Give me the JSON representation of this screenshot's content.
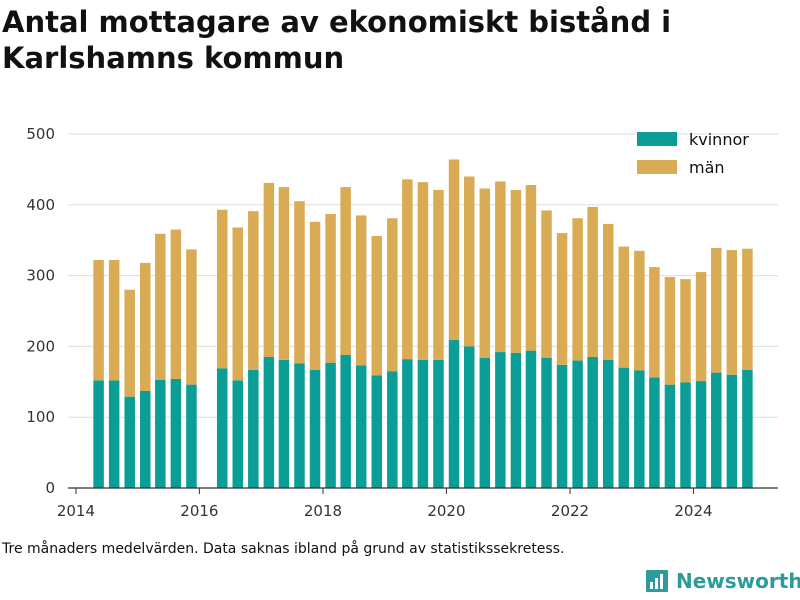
{
  "title": "Antal mottagare av ekonomiskt bistånd i Karlshamns kommun",
  "caption": "Tre månaders medelvärden. Data saknas ibland på grund av statistikssekretess.",
  "brand": {
    "name": "Newsworthy",
    "logo_icon": "bar-chart-logo-icon"
  },
  "colors": {
    "kvinnor": "#0a9e96",
    "man": "#d9ab55",
    "grid": "#dddddd",
    "axis": "#333333"
  },
  "legend": {
    "position": "top-right",
    "items": [
      {
        "label": "kvinnor",
        "color": "#0a9e96"
      },
      {
        "label": "män",
        "color": "#d9ab55"
      }
    ]
  },
  "chart_data": {
    "type": "bar",
    "stacked": true,
    "x_ticks": [
      "2014",
      "2016",
      "2018",
      "2020",
      "2022",
      "2024"
    ],
    "y_ticks": [
      0,
      100,
      200,
      300,
      400,
      500
    ],
    "ylim": [
      0,
      500
    ],
    "xlim": [
      "2013-11-15",
      "2025-05-15"
    ],
    "grid": true,
    "categories": [
      "2014-05",
      "2014-08",
      "2014-11",
      "2015-02",
      "2015-05",
      "2015-08",
      "2015-11",
      "2016-05",
      "2016-08",
      "2016-11",
      "2017-02",
      "2017-05",
      "2017-08",
      "2017-11",
      "2018-02",
      "2018-05",
      "2018-08",
      "2018-11",
      "2019-02",
      "2019-05",
      "2019-08",
      "2019-11",
      "2020-02",
      "2020-05",
      "2020-08",
      "2020-11",
      "2021-02",
      "2021-05",
      "2021-08",
      "2021-11",
      "2022-02",
      "2022-05",
      "2022-08",
      "2022-11",
      "2023-02",
      "2023-05",
      "2023-08",
      "2023-11",
      "2024-02",
      "2024-05",
      "2024-08",
      "2024-11"
    ],
    "series": [
      {
        "name": "kvinnor",
        "values": [
          152,
          152,
          129,
          137,
          153,
          154,
          146,
          169,
          152,
          167,
          185,
          181,
          176,
          167,
          177,
          188,
          173,
          159,
          165,
          182,
          181,
          181,
          209,
          200,
          184,
          192,
          191,
          194,
          184,
          174,
          180,
          185,
          181,
          170,
          166,
          156,
          146,
          149,
          151,
          163,
          160,
          167
        ]
      },
      {
        "name": "män",
        "values": [
          170,
          170,
          151,
          181,
          206,
          211,
          191,
          224,
          216,
          224,
          246,
          244,
          229,
          209,
          210,
          237,
          212,
          197,
          216,
          254,
          251,
          240,
          255,
          240,
          239,
          241,
          230,
          234,
          208,
          186,
          201,
          212,
          192,
          171,
          169,
          156,
          152,
          146,
          154,
          176,
          176,
          171
        ]
      }
    ]
  }
}
